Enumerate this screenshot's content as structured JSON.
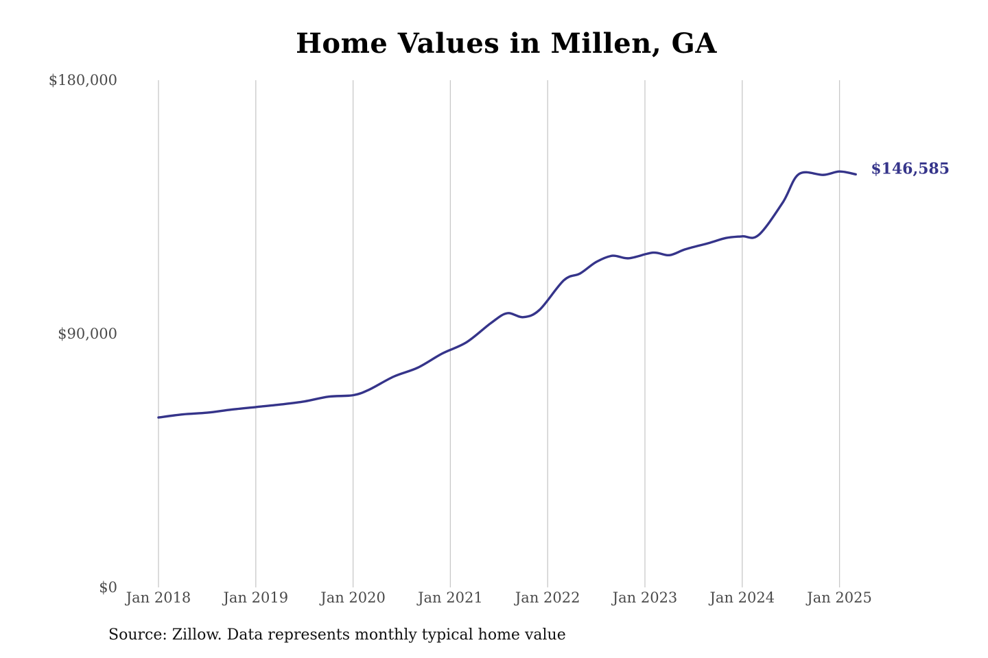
{
  "chart_data": {
    "type": "line",
    "title": "Home Values in Millen, GA",
    "xlabel": "",
    "ylabel": "",
    "ylim": [
      0,
      180000
    ],
    "xlim": [
      "2018-01",
      "2025-03"
    ],
    "y_ticks": [
      {
        "value": 0,
        "label": "$0"
      },
      {
        "value": 90000,
        "label": "$90,000"
      },
      {
        "value": 180000,
        "label": "$180,000"
      }
    ],
    "x_ticks": [
      {
        "date": "2018-01",
        "label": "Jan 2018"
      },
      {
        "date": "2019-01",
        "label": "Jan 2019"
      },
      {
        "date": "2020-01",
        "label": "Jan 2020"
      },
      {
        "date": "2021-01",
        "label": "Jan 2021"
      },
      {
        "date": "2022-01",
        "label": "Jan 2022"
      },
      {
        "date": "2023-01",
        "label": "Jan 2023"
      },
      {
        "date": "2024-01",
        "label": "Jan 2024"
      },
      {
        "date": "2025-01",
        "label": "Jan 2025"
      }
    ],
    "grid": {
      "vertical": true,
      "horizontal": false
    },
    "series": [
      {
        "color": "#35348a",
        "end_label": "$146,585",
        "points": [
          [
            "2018-01",
            60300
          ],
          [
            "2018-04",
            61400
          ],
          [
            "2018-07",
            62000
          ],
          [
            "2018-10",
            63100
          ],
          [
            "2019-01",
            64000
          ],
          [
            "2019-04",
            64900
          ],
          [
            "2019-07",
            66000
          ],
          [
            "2019-10",
            67700
          ],
          [
            "2020-01",
            68200
          ],
          [
            "2020-03",
            70200
          ],
          [
            "2020-06",
            74800
          ],
          [
            "2020-09",
            78000
          ],
          [
            "2020-12",
            83000
          ],
          [
            "2021-03",
            87000
          ],
          [
            "2021-06",
            93800
          ],
          [
            "2021-08",
            97300
          ],
          [
            "2021-10",
            95900
          ],
          [
            "2021-12",
            98500
          ],
          [
            "2022-03",
            109000
          ],
          [
            "2022-05",
            111400
          ],
          [
            "2022-07",
            115500
          ],
          [
            "2022-09",
            117700
          ],
          [
            "2022-11",
            116800
          ],
          [
            "2023-02",
            118800
          ],
          [
            "2023-04",
            117900
          ],
          [
            "2023-06",
            120000
          ],
          [
            "2023-09",
            122300
          ],
          [
            "2023-11",
            124000
          ],
          [
            "2024-01",
            124600
          ],
          [
            "2024-03",
            125000
          ],
          [
            "2024-06",
            136600
          ],
          [
            "2024-08",
            146700
          ],
          [
            "2024-11",
            146400
          ],
          [
            "2025-01",
            147600
          ],
          [
            "2025-03",
            146585
          ]
        ]
      }
    ]
  },
  "footer": {
    "source": "Source: Zillow. Data represents monthly typical home value"
  }
}
